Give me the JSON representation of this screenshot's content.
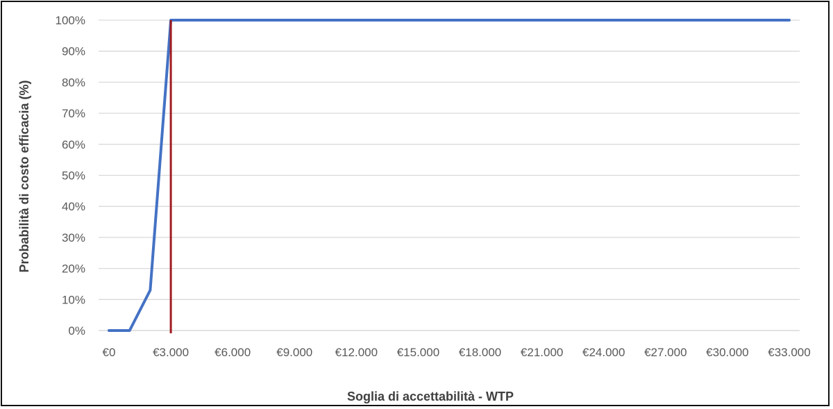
{
  "chart_data": {
    "type": "line",
    "title": "",
    "xlabel": "Soglia di accettabilità - WTP",
    "ylabel": "Probabilità di costo efficacia (%)",
    "x_categories": [
      "€0",
      "€3.000",
      "€6.000",
      "€9.000",
      "€12.000",
      "€15.000",
      "€18.000",
      "€21.000",
      "€24.000",
      "€27.000",
      "€30.000",
      "€33.000"
    ],
    "xlim": [
      0,
      33000
    ],
    "ylim": [
      0,
      100
    ],
    "y_ticks": [
      "0%",
      "10%",
      "20%",
      "30%",
      "40%",
      "50%",
      "60%",
      "70%",
      "80%",
      "90%",
      "100%"
    ],
    "grid": true,
    "legend": "none",
    "series": [
      {
        "color": "#4472c4",
        "x": [
          0,
          1000,
          2000,
          3000,
          4000,
          5000,
          6000,
          7000,
          8000,
          9000,
          10000,
          11000,
          12000,
          13000,
          14000,
          15000,
          16000,
          17000,
          18000,
          19000,
          20000,
          21000,
          22000,
          23000,
          24000,
          25000,
          26000,
          27000,
          28000,
          29000,
          30000,
          31000,
          32000,
          33000
        ],
        "y": [
          0,
          0,
          13,
          100,
          100,
          100,
          100,
          100,
          100,
          100,
          100,
          100,
          100,
          100,
          100,
          100,
          100,
          100,
          100,
          100,
          100,
          100,
          100,
          100,
          100,
          100,
          100,
          100,
          100,
          100,
          100,
          100,
          100,
          100
        ]
      }
    ],
    "reference_line": {
      "x": 3000,
      "color": "#a01c22"
    },
    "colors": {
      "grid": "#d9d9d9",
      "tick_text": "#595959",
      "title_text": "#404040"
    }
  }
}
